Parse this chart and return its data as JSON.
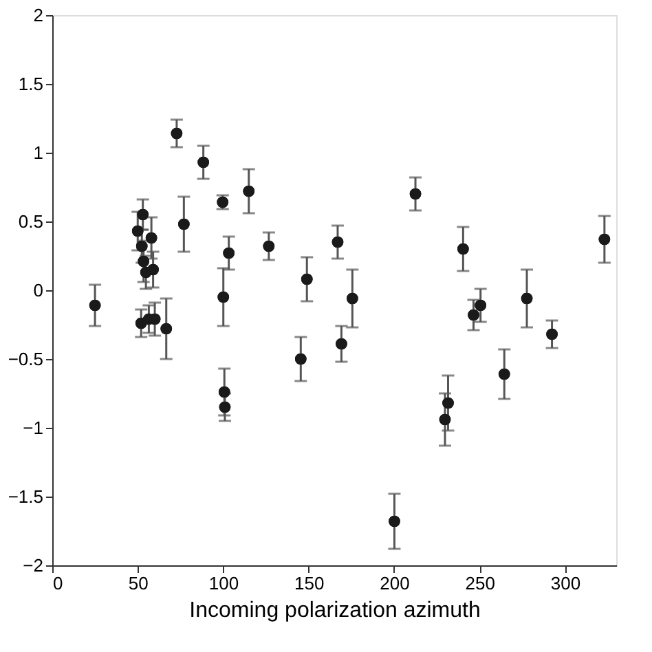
{
  "chart_data": {
    "type": "scatter",
    "xlabel": "Incoming polarization azimuth",
    "x": [
      25,
      50,
      53,
      52.4,
      53.4,
      54.8,
      58,
      59,
      52,
      56.5,
      60,
      66.7,
      72.8,
      77,
      88.4,
      99.7,
      103.3,
      100.1,
      100.7,
      101,
      115,
      126.7,
      149,
      145.4,
      167,
      169.2,
      175.6,
      200.2,
      212.5,
      229.8,
      231.6,
      240.4,
      246.5,
      250.6,
      264.5,
      277.7,
      292.4,
      323.1
    ],
    "values": [
      -0.11,
      0.43,
      0.55,
      0.32,
      0.21,
      0.13,
      0.38,
      0.15,
      -0.24,
      -0.21,
      -0.21,
      -0.28,
      1.14,
      0.48,
      0.93,
      0.64,
      0.27,
      -0.05,
      -0.74,
      -0.85,
      0.72,
      0.32,
      0.08,
      -0.5,
      0.35,
      -0.39,
      -0.06,
      -1.68,
      0.7,
      -0.94,
      -0.82,
      0.3,
      -0.18,
      -0.11,
      -0.61,
      -0.06,
      -0.32,
      0.37
    ],
    "errors": [
      0.15,
      0.14,
      0.11,
      0.12,
      0.15,
      0.12,
      0.15,
      0.13,
      0.1,
      0.1,
      0.12,
      0.22,
      0.1,
      0.2,
      0.12,
      0.05,
      0.12,
      0.21,
      0.17,
      0.1,
      0.16,
      0.1,
      0.16,
      0.16,
      0.12,
      0.13,
      0.21,
      0.2,
      0.12,
      0.19,
      0.2,
      0.16,
      0.11,
      0.12,
      0.18,
      0.21,
      0.1,
      0.17
    ],
    "color": "#1a1a1a",
    "marker": "circle",
    "grid": false,
    "xlim": [
      0,
      330
    ],
    "xticks": [
      0,
      50,
      100,
      150,
      200,
      250,
      300
    ],
    "ylim": [
      -2,
      2
    ],
    "yticks": [
      -2,
      -1.5,
      -1,
      -0.5,
      0,
      0.5,
      1,
      1.5,
      2
    ]
  }
}
